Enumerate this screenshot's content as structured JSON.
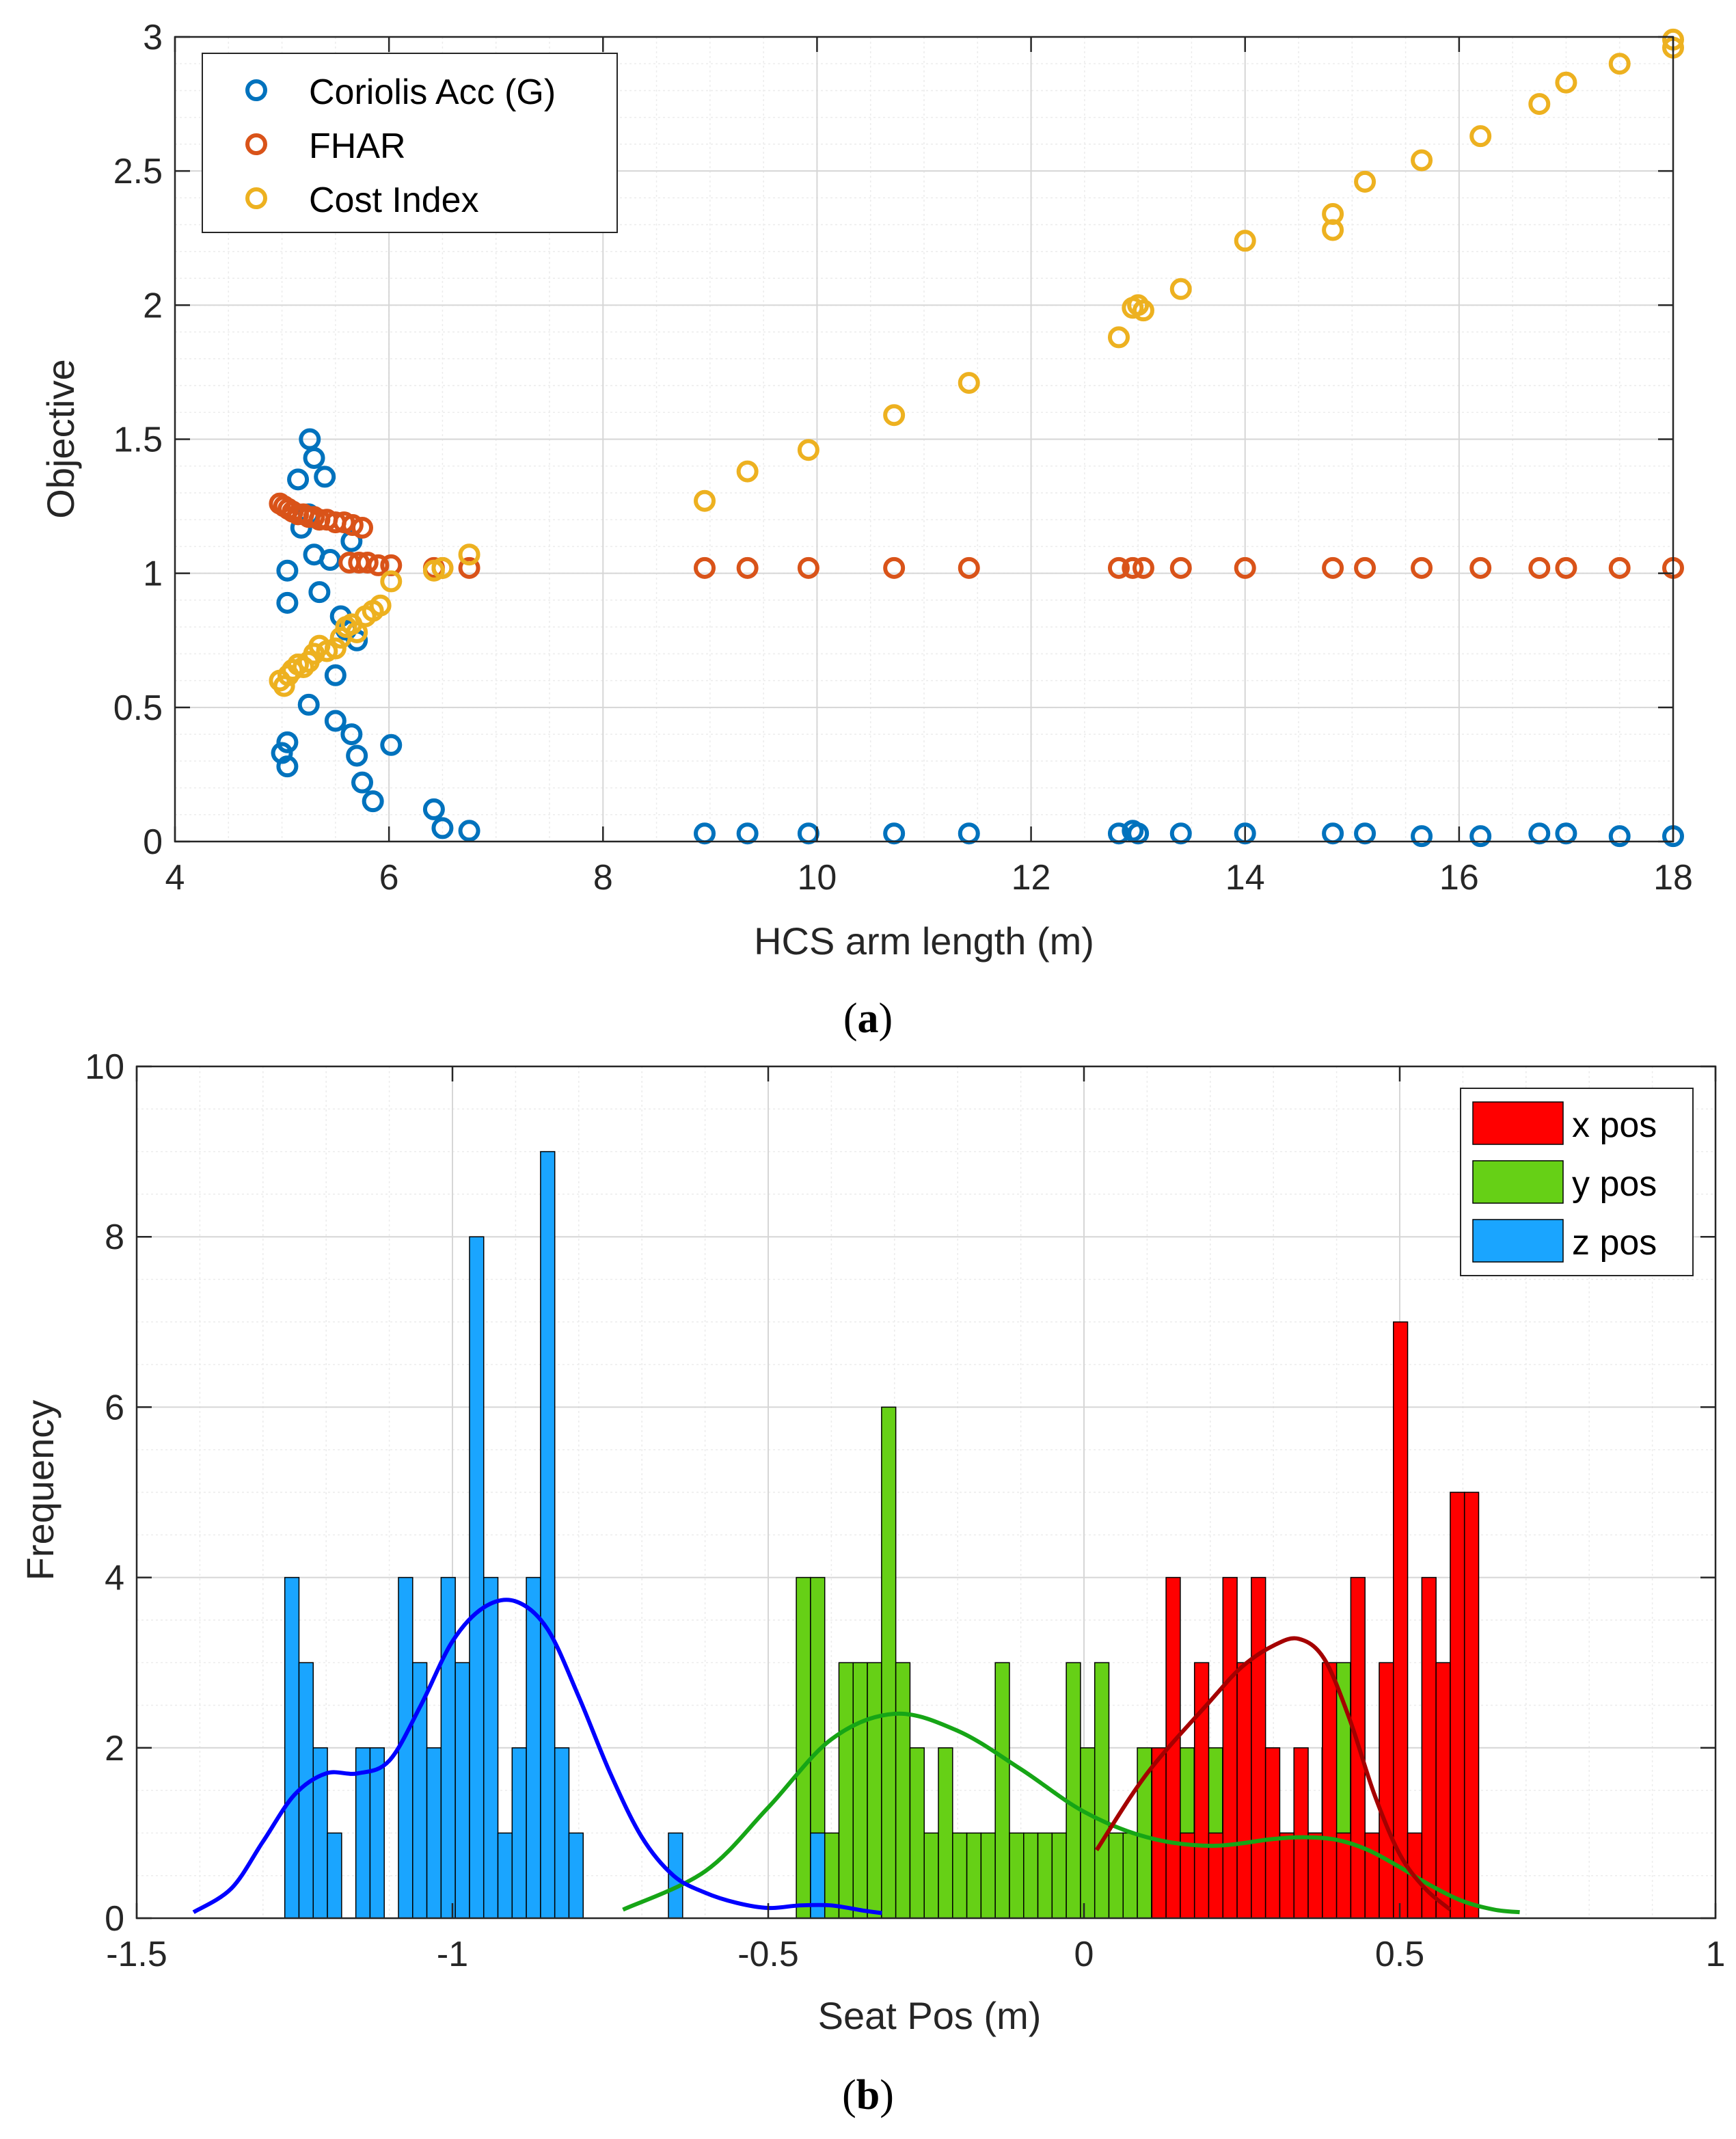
{
  "chart_data": [
    {
      "type": "scatter",
      "panel_label": "a",
      "xlabel": "HCS arm length (m)",
      "ylabel": "Objective",
      "xlim": [
        4,
        18
      ],
      "ylim": [
        0,
        3
      ],
      "xticks": [
        "4",
        "6",
        "8",
        "10",
        "12",
        "14",
        "16",
        "18"
      ],
      "yticks": [
        "0",
        "0.5",
        "1",
        "1.5",
        "2",
        "2.5",
        "3"
      ],
      "grid": true,
      "minor_grid": true,
      "legend_position": "top-left",
      "series": [
        {
          "name": "Coriolis Acc (G)",
          "color": "#0072BD",
          "points": [
            [
              5.26,
              1.5
            ],
            [
              5.3,
              1.43
            ],
            [
              5.15,
              1.35
            ],
            [
              5.4,
              1.36
            ],
            [
              5.18,
              1.17
            ],
            [
              5.25,
              1.22
            ],
            [
              5.65,
              1.12
            ],
            [
              5.05,
              1.01
            ],
            [
              5.3,
              1.07
            ],
            [
              5.45,
              1.05
            ],
            [
              5.35,
              0.93
            ],
            [
              5.05,
              0.89
            ],
            [
              5.55,
              0.84
            ],
            [
              5.6,
              0.79
            ],
            [
              5.7,
              0.75
            ],
            [
              5.5,
              0.62
            ],
            [
              5.25,
              0.51
            ],
            [
              5.5,
              0.45
            ],
            [
              5.65,
              0.4
            ],
            [
              5.7,
              0.32
            ],
            [
              6.02,
              0.36
            ],
            [
              5.0,
              0.33
            ],
            [
              5.05,
              0.37
            ],
            [
              5.05,
              0.28
            ],
            [
              5.75,
              0.22
            ],
            [
              5.85,
              0.15
            ],
            [
              6.42,
              0.12
            ],
            [
              6.5,
              0.05
            ],
            [
              6.75,
              0.04
            ],
            [
              8.95,
              0.03
            ],
            [
              9.35,
              0.03
            ],
            [
              9.92,
              0.03
            ],
            [
              10.72,
              0.03
            ],
            [
              11.42,
              0.03
            ],
            [
              12.82,
              0.03
            ],
            [
              12.95,
              0.04
            ],
            [
              13.0,
              0.03
            ],
            [
              13.4,
              0.03
            ],
            [
              14.0,
              0.03
            ],
            [
              14.82,
              0.03
            ],
            [
              15.12,
              0.03
            ],
            [
              15.65,
              0.02
            ],
            [
              16.2,
              0.02
            ],
            [
              16.75,
              0.03
            ],
            [
              17.0,
              0.03
            ],
            [
              17.5,
              0.02
            ],
            [
              18.0,
              0.02
            ]
          ]
        },
        {
          "name": "FHAR",
          "color": "#D95319",
          "points": [
            [
              4.98,
              1.26
            ],
            [
              5.02,
              1.25
            ],
            [
              5.06,
              1.24
            ],
            [
              5.1,
              1.23
            ],
            [
              5.15,
              1.22
            ],
            [
              5.2,
              1.22
            ],
            [
              5.25,
              1.21
            ],
            [
              5.3,
              1.21
            ],
            [
              5.35,
              1.2
            ],
            [
              5.42,
              1.2
            ],
            [
              5.5,
              1.19
            ],
            [
              5.58,
              1.19
            ],
            [
              5.66,
              1.18
            ],
            [
              5.75,
              1.17
            ],
            [
              5.63,
              1.04
            ],
            [
              5.72,
              1.04
            ],
            [
              5.8,
              1.04
            ],
            [
              5.9,
              1.03
            ],
            [
              6.02,
              1.03
            ],
            [
              6.42,
              1.02
            ],
            [
              6.5,
              1.02
            ],
            [
              6.75,
              1.02
            ],
            [
              8.95,
              1.02
            ],
            [
              9.35,
              1.02
            ],
            [
              9.92,
              1.02
            ],
            [
              10.72,
              1.02
            ],
            [
              11.42,
              1.02
            ],
            [
              12.82,
              1.02
            ],
            [
              12.95,
              1.02
            ],
            [
              13.05,
              1.02
            ],
            [
              13.4,
              1.02
            ],
            [
              14.0,
              1.02
            ],
            [
              14.82,
              1.02
            ],
            [
              15.12,
              1.02
            ],
            [
              15.65,
              1.02
            ],
            [
              16.2,
              1.02
            ],
            [
              16.75,
              1.02
            ],
            [
              17.0,
              1.02
            ],
            [
              17.5,
              1.02
            ],
            [
              18.0,
              1.02
            ]
          ]
        },
        {
          "name": "Cost Index",
          "color": "#EDB120",
          "points": [
            [
              4.98,
              0.6
            ],
            [
              5.02,
              0.58
            ],
            [
              5.06,
              0.62
            ],
            [
              5.1,
              0.64
            ],
            [
              5.15,
              0.66
            ],
            [
              5.2,
              0.65
            ],
            [
              5.25,
              0.67
            ],
            [
              5.3,
              0.7
            ],
            [
              5.35,
              0.73
            ],
            [
              5.42,
              0.71
            ],
            [
              5.5,
              0.72
            ],
            [
              5.55,
              0.76
            ],
            [
              5.6,
              0.8
            ],
            [
              5.65,
              0.81
            ],
            [
              5.7,
              0.78
            ],
            [
              5.78,
              0.84
            ],
            [
              5.85,
              0.86
            ],
            [
              5.92,
              0.88
            ],
            [
              6.02,
              0.97
            ],
            [
              6.42,
              1.01
            ],
            [
              6.5,
              1.02
            ],
            [
              6.75,
              1.07
            ],
            [
              8.95,
              1.27
            ],
            [
              9.35,
              1.38
            ],
            [
              9.92,
              1.46
            ],
            [
              10.72,
              1.59
            ],
            [
              11.42,
              1.71
            ],
            [
              12.82,
              1.88
            ],
            [
              12.95,
              1.99
            ],
            [
              13.0,
              2.0
            ],
            [
              13.05,
              1.98
            ],
            [
              13.4,
              2.06
            ],
            [
              14.0,
              2.24
            ],
            [
              14.82,
              2.28
            ],
            [
              14.82,
              2.34
            ],
            [
              15.12,
              2.46
            ],
            [
              15.65,
              2.54
            ],
            [
              16.2,
              2.63
            ],
            [
              16.75,
              2.75
            ],
            [
              17.0,
              2.83
            ],
            [
              17.5,
              2.9
            ],
            [
              18.0,
              2.96
            ],
            [
              18.0,
              2.99
            ]
          ]
        }
      ]
    },
    {
      "type": "histogram",
      "panel_label": "b",
      "xlabel": "Seat Pos (m)",
      "ylabel": "Frequency",
      "xlim": [
        -1.5,
        1
      ],
      "ylim": [
        0,
        10
      ],
      "xticks": [
        "-1.5",
        "-1",
        "-0.5",
        "0",
        "0.5",
        "1"
      ],
      "yticks": [
        "0",
        "2",
        "4",
        "6",
        "8",
        "10"
      ],
      "grid": true,
      "minor_grid": true,
      "legend_position": "top-right",
      "bin_width": 0.0225,
      "series": [
        {
          "name": "x pos",
          "color": "#FF0000",
          "curve_color": "#A50000",
          "bin_start": 0.1075,
          "counts": [
            2,
            4,
            1,
            3,
            1,
            4,
            3,
            4,
            2,
            1,
            2,
            1,
            3,
            1,
            4,
            1,
            3,
            7,
            1,
            4,
            3,
            5,
            5
          ],
          "fit_curve": {
            "x": [
              0.02,
              0.1,
              0.2,
              0.25,
              0.3,
              0.34,
              0.38,
              0.42,
              0.46,
              0.5,
              0.54,
              0.58
            ],
            "y": [
              0.8,
              1.7,
              2.55,
              2.95,
              3.2,
              3.28,
              3.05,
              2.35,
              1.45,
              0.75,
              0.35,
              0.1
            ]
          }
        },
        {
          "name": "y pos",
          "color": "#66D016",
          "curve_color": "#16A516",
          "bin_start": -0.4555,
          "counts": [
            4,
            4,
            1,
            3,
            3,
            3,
            6,
            3,
            2,
            1,
            2,
            1,
            1,
            1,
            3,
            1,
            1,
            1,
            1,
            3,
            2,
            3,
            1,
            1,
            2,
            1,
            1,
            2,
            1,
            2,
            1,
            2,
            3,
            2,
            1,
            1,
            1,
            2,
            3,
            1
          ],
          "fit_curve": {
            "x": [
              -0.73,
              -0.6,
              -0.5,
              -0.4,
              -0.3,
              -0.2,
              -0.1,
              0.0,
              0.1,
              0.2,
              0.3,
              0.35,
              0.4,
              0.45,
              0.5,
              0.55,
              0.6,
              0.65,
              0.69
            ],
            "y": [
              0.1,
              0.55,
              1.3,
              2.1,
              2.4,
              2.2,
              1.75,
              1.25,
              0.95,
              0.85,
              0.93,
              0.95,
              0.92,
              0.8,
              0.6,
              0.38,
              0.2,
              0.1,
              0.07
            ]
          }
        },
        {
          "name": "z pos",
          "color": "#1AA5FF",
          "curve_color": "#0000FF",
          "bin_start": -1.2655,
          "counts": [
            4,
            3,
            2,
            1,
            0,
            2,
            2,
            0,
            4,
            3,
            2,
            4,
            3,
            8,
            4,
            1,
            2,
            4,
            9,
            2,
            1,
            0,
            0,
            0,
            0,
            0,
            0,
            1,
            0,
            0,
            0,
            0,
            0,
            0,
            0,
            0,
            0,
            1
          ],
          "fit_curve": {
            "x": [
              -1.41,
              -1.35,
              -1.3,
              -1.25,
              -1.2,
              -1.15,
              -1.1,
              -1.05,
              -1.0,
              -0.95,
              -0.9,
              -0.85,
              -0.8,
              -0.75,
              -0.7,
              -0.65,
              -0.6,
              -0.55,
              -0.5,
              -0.45,
              -0.4,
              -0.35,
              -0.32
            ],
            "y": [
              0.07,
              0.35,
              0.9,
              1.45,
              1.7,
              1.7,
              1.85,
              2.5,
              3.25,
              3.65,
              3.72,
              3.4,
              2.6,
              1.7,
              0.95,
              0.5,
              0.3,
              0.18,
              0.12,
              0.15,
              0.15,
              0.09,
              0.06
            ]
          }
        }
      ]
    }
  ]
}
